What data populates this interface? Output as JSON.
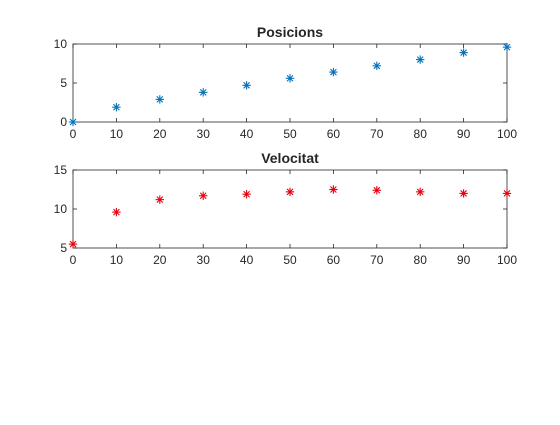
{
  "chart_data": [
    {
      "type": "scatter",
      "title": "Posicions",
      "xlabel": "",
      "ylabel": "",
      "xlim": [
        0,
        100
      ],
      "ylim": [
        0,
        10
      ],
      "xticks": [
        0,
        10,
        20,
        30,
        40,
        50,
        60,
        70,
        80,
        90,
        100
      ],
      "yticks": [
        0,
        5,
        10
      ],
      "marker": "asterisk",
      "color": "#0072BD",
      "grid": false,
      "x": [
        0,
        10,
        20,
        30,
        40,
        50,
        60,
        70,
        80,
        90,
        100
      ],
      "y": [
        0,
        1.9,
        2.9,
        3.8,
        4.7,
        5.6,
        6.4,
        7.2,
        8.0,
        8.9,
        9.6
      ]
    },
    {
      "type": "scatter",
      "title": "Velocitat",
      "xlabel": "",
      "ylabel": "",
      "xlim": [
        0,
        100
      ],
      "ylim": [
        5,
        15
      ],
      "xticks": [
        0,
        10,
        20,
        30,
        40,
        50,
        60,
        70,
        80,
        90,
        100
      ],
      "yticks": [
        5,
        10,
        15
      ],
      "marker": "asterisk",
      "color": "#E6000D",
      "grid": false,
      "x": [
        0,
        10,
        20,
        30,
        40,
        50,
        60,
        70,
        80,
        90,
        100
      ],
      "y": [
        5.5,
        9.6,
        11.2,
        11.7,
        11.9,
        12.2,
        12.5,
        12.4,
        12.2,
        12.0,
        12.0
      ]
    }
  ]
}
